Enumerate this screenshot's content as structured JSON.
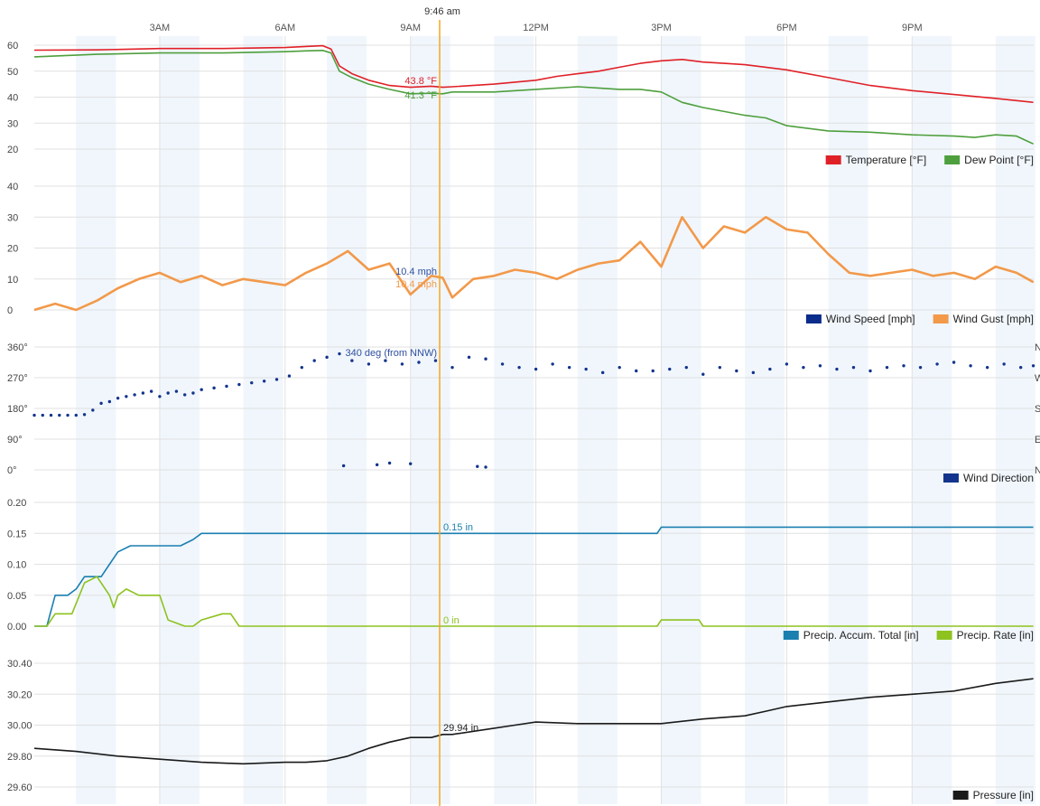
{
  "cursor": {
    "time_label": "9:46 am"
  },
  "time_axis": {
    "ticks": [
      "3AM",
      "6AM",
      "9AM",
      "12PM",
      "3PM",
      "6PM",
      "9PM"
    ]
  },
  "colors": {
    "temperature": "#e02027",
    "dew_point": "#4e9f3d",
    "wind_speed": "#0a2c8a",
    "wind_gust": "#f2994a",
    "wind_direction": "#12348c",
    "precip_total": "#1b7fb0",
    "precip_rate": "#8dc21f",
    "pressure": "#1a1a1a",
    "cursor_line": "#f5a623",
    "night_band": "#e4eef9"
  },
  "chart_data": [
    {
      "type": "line",
      "name": "temperature-chart",
      "x_unit": "hour",
      "ylim": [
        20,
        60
      ],
      "yticks": [
        "60",
        "50",
        "40",
        "30",
        "20"
      ],
      "series": [
        {
          "name": "Temperature [°F]",
          "color_key": "temperature",
          "x": [
            0,
            1.5,
            3,
            4.5,
            6,
            6.5,
            6.9,
            7.1,
            7.3,
            7.6,
            8,
            8.5,
            9,
            9.5,
            9.77,
            10,
            11,
            12,
            12.5,
            13,
            13.5,
            14,
            14.5,
            15,
            15.5,
            16,
            16.5,
            17,
            17.5,
            18,
            19,
            20,
            21,
            22,
            23,
            23.9
          ],
          "y": [
            58.1,
            58.2,
            58.7,
            58.7,
            59.1,
            59.5,
            59.8,
            58.5,
            52,
            49,
            46.5,
            44.5,
            43.8,
            44.2,
            43.8,
            44,
            45,
            46.5,
            48,
            49,
            50,
            51.5,
            53,
            54,
            54.5,
            53.5,
            53,
            52.5,
            51.5,
            50.5,
            47.5,
            44.5,
            42.5,
            41,
            39.5,
            38
          ]
        },
        {
          "name": "Dew Point [°F]",
          "color_key": "dew_point",
          "x": [
            0,
            1.5,
            3,
            4.5,
            6,
            6.5,
            6.9,
            7.1,
            7.3,
            7.6,
            8,
            8.5,
            9,
            9.5,
            9.77,
            10,
            11,
            12,
            13,
            13.5,
            14,
            14.5,
            15,
            15.5,
            16,
            17,
            17.5,
            18,
            19,
            20,
            21,
            22,
            22.5,
            23,
            23.5,
            23.9
          ],
          "y": [
            55.5,
            56.5,
            57,
            57,
            57.5,
            57.8,
            58,
            57,
            50,
            47.5,
            45,
            43,
            41.3,
            41.5,
            41.3,
            42,
            42,
            43,
            44,
            43.5,
            43,
            43,
            42,
            38,
            36,
            33,
            32,
            29,
            27,
            26.5,
            25.5,
            25,
            24.5,
            25.5,
            25,
            22
          ]
        }
      ]
    },
    {
      "type": "line",
      "name": "wind-speed-chart",
      "x_unit": "hour",
      "ylim": [
        0,
        40
      ],
      "yticks": [
        "40",
        "30",
        "20",
        "10",
        "0"
      ],
      "series": [
        {
          "name": "Wind Speed [mph]",
          "color_key": "wind_speed",
          "x": [
            0,
            0.5,
            1,
            1.5,
            2,
            2.5,
            3,
            3.5,
            4,
            4.5,
            5,
            5.5,
            6,
            6.5,
            7,
            7.5,
            8,
            8.5,
            9,
            9.5,
            9.77,
            10,
            10.5,
            11,
            11.5,
            12,
            12.5,
            13,
            13.5,
            14,
            14.5,
            15,
            15.5,
            16,
            16.5,
            17,
            17.5,
            18,
            18.5,
            19,
            19.5,
            20,
            20.5,
            21,
            21.5,
            22,
            22.5,
            23,
            23.5,
            23.9
          ],
          "y": [
            0,
            2,
            0,
            3,
            7,
            10,
            12,
            9,
            11,
            8,
            10,
            9,
            8,
            12,
            15,
            19,
            13,
            15,
            5,
            11,
            10.4,
            4,
            10,
            11,
            13,
            12,
            10,
            13,
            15,
            16,
            22,
            14,
            30,
            20,
            27,
            25,
            30,
            26,
            25,
            18,
            12,
            11,
            12,
            13,
            11,
            12,
            10,
            14,
            12,
            9
          ]
        },
        {
          "name": "Wind Gust [mph]",
          "color_key": "wind_gust",
          "x": [
            0,
            0.5,
            1,
            1.5,
            2,
            2.5,
            3,
            3.5,
            4,
            4.5,
            5,
            5.5,
            6,
            6.5,
            7,
            7.5,
            8,
            8.5,
            9,
            9.5,
            9.77,
            10,
            10.5,
            11,
            11.5,
            12,
            12.5,
            13,
            13.5,
            14,
            14.5,
            15,
            15.5,
            16,
            16.5,
            17,
            17.5,
            18,
            18.5,
            19,
            19.5,
            20,
            20.5,
            21,
            21.5,
            22,
            22.5,
            23,
            23.5,
            23.9
          ],
          "y": [
            0,
            2,
            0,
            3,
            7,
            10,
            12,
            9,
            11,
            8,
            10,
            9,
            8,
            12,
            15,
            19,
            13,
            15,
            5,
            11,
            10.4,
            4,
            10,
            11,
            13,
            12,
            10,
            13,
            15,
            16,
            22,
            14,
            30,
            20,
            27,
            25,
            30,
            26,
            25,
            18,
            12,
            11,
            12,
            13,
            11,
            12,
            10,
            14,
            12,
            9
          ]
        }
      ]
    },
    {
      "type": "scatter",
      "name": "wind-direction-chart",
      "x_unit": "hour",
      "ylim": [
        0,
        360
      ],
      "yticks": [
        "360°",
        "270°",
        "180°",
        "90°",
        "0°"
      ],
      "right_labels": [
        "N",
        "W",
        "S",
        "E",
        "N"
      ],
      "series": [
        {
          "name": "Wind Direction",
          "color_key": "wind_direction",
          "x": [
            0,
            0.2,
            0.4,
            0.6,
            0.8,
            1,
            1.2,
            1.4,
            1.6,
            1.8,
            2,
            2.2,
            2.4,
            2.6,
            2.8,
            3,
            3.2,
            3.4,
            3.6,
            3.8,
            4,
            4.3,
            4.6,
            4.9,
            5.2,
            5.5,
            5.8,
            6.1,
            6.4,
            6.7,
            7,
            7.3,
            7.6,
            8,
            8.4,
            8.8,
            9.2,
            9.6,
            10,
            10.4,
            10.8,
            11.2,
            11.6,
            12,
            12.4,
            12.8,
            13.2,
            13.6,
            14,
            14.4,
            14.8,
            15.2,
            15.6,
            16,
            16.4,
            16.8,
            17.2,
            17.6,
            18,
            18.4,
            18.8,
            19.2,
            19.6,
            20,
            20.4,
            20.8,
            21.2,
            21.6,
            22,
            22.4,
            22.8,
            23.2,
            23.6,
            23.9,
            7.4,
            8.2,
            8.5,
            9,
            10.6,
            10.8
          ],
          "y": [
            160,
            160,
            160,
            160,
            160,
            160,
            162,
            175,
            195,
            200,
            210,
            215,
            220,
            225,
            230,
            215,
            225,
            230,
            220,
            225,
            235,
            240,
            245,
            250,
            255,
            260,
            265,
            275,
            300,
            320,
            330,
            340,
            320,
            310,
            320,
            310,
            315,
            320,
            300,
            330,
            325,
            310,
            300,
            295,
            310,
            300,
            295,
            285,
            300,
            290,
            290,
            295,
            300,
            280,
            300,
            290,
            285,
            295,
            310,
            300,
            305,
            295,
            300,
            290,
            300,
            305,
            300,
            310,
            315,
            305,
            300,
            310,
            300,
            305,
            12,
            15,
            20,
            18,
            10,
            8
          ]
        }
      ]
    },
    {
      "type": "line",
      "name": "precipitation-chart",
      "x_unit": "hour",
      "ylim": [
        0,
        0.2
      ],
      "yticks": [
        "0.20",
        "0.15",
        "0.10",
        "0.05",
        "0.00"
      ],
      "series": [
        {
          "name": "Precip. Accum. Total [in]",
          "color_key": "precip_total",
          "x": [
            0,
            0.3,
            0.5,
            0.8,
            1,
            1.2,
            1.4,
            1.6,
            1.8,
            2,
            2.3,
            2.5,
            3,
            3.5,
            3.8,
            4,
            5,
            6,
            7,
            8,
            9,
            9.77,
            10,
            12,
            13,
            14,
            14.9,
            15,
            16,
            18,
            20,
            22,
            23.9
          ],
          "y": [
            0,
            0,
            0.05,
            0.05,
            0.06,
            0.08,
            0.08,
            0.08,
            0.1,
            0.12,
            0.13,
            0.13,
            0.13,
            0.13,
            0.14,
            0.15,
            0.15,
            0.15,
            0.15,
            0.15,
            0.15,
            0.15,
            0.15,
            0.15,
            0.15,
            0.15,
            0.15,
            0.16,
            0.16,
            0.16,
            0.16,
            0.16,
            0.16
          ]
        },
        {
          "name": "Precip. Rate [in]",
          "color_key": "precip_rate",
          "x": [
            0,
            0.3,
            0.5,
            0.9,
            1.2,
            1.5,
            1.8,
            1.9,
            2,
            2.2,
            2.5,
            2.8,
            3,
            3.2,
            3.6,
            3.8,
            4,
            4.5,
            4.7,
            4.9,
            9.77,
            10,
            14,
            14.9,
            15,
            15.9,
            16,
            23.9
          ],
          "y": [
            0,
            0,
            0.02,
            0.02,
            0.07,
            0.08,
            0.05,
            0.03,
            0.05,
            0.06,
            0.05,
            0.05,
            0.05,
            0.01,
            0.0,
            0.0,
            0.01,
            0.02,
            0.02,
            0.0,
            0.0,
            0.0,
            0.0,
            0.0,
            0.01,
            0.01,
            0.0,
            0.0
          ]
        }
      ]
    },
    {
      "type": "line",
      "name": "pressure-chart",
      "x_unit": "hour",
      "ylim": [
        29.6,
        30.4
      ],
      "yticks": [
        "30.40",
        "30.20",
        "30.00",
        "29.80",
        "29.60"
      ],
      "series": [
        {
          "name": "Pressure [in]",
          "color_key": "pressure",
          "x": [
            0,
            1,
            2,
            3,
            4,
            5,
            6,
            6.5,
            7,
            7.5,
            8,
            8.5,
            9,
            9.5,
            9.77,
            10,
            11,
            11.5,
            12,
            13,
            14,
            15,
            16,
            17,
            17.5,
            18,
            19,
            20,
            21,
            22,
            23,
            23.9
          ],
          "y": [
            29.85,
            29.83,
            29.8,
            29.78,
            29.76,
            29.75,
            29.76,
            29.76,
            29.77,
            29.8,
            29.85,
            29.89,
            29.92,
            29.92,
            29.94,
            29.94,
            29.98,
            30.0,
            30.02,
            30.01,
            30.01,
            30.01,
            30.04,
            30.06,
            30.09,
            30.12,
            30.15,
            30.18,
            30.2,
            30.22,
            30.27,
            30.3
          ]
        }
      ]
    }
  ],
  "annotations": {
    "temperature_value": "43.8 °F",
    "dew_point_value": "41.3 °F",
    "wind_speed_value": "10.4 mph",
    "wind_gust_value": "10.4 mph",
    "wind_direction_value": "340 deg (from NNW)",
    "precip_total_value": "0.15 in",
    "precip_rate_value": "0 in",
    "pressure_value": "29.94 in"
  }
}
